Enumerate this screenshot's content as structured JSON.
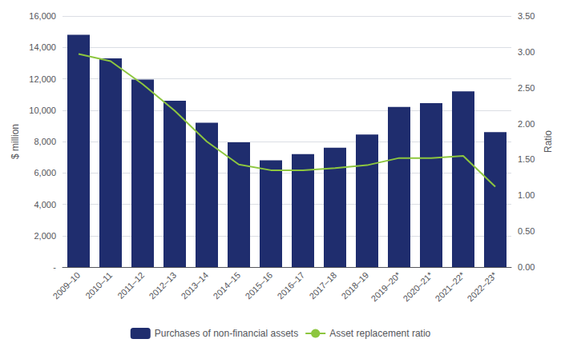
{
  "chart_data": {
    "type": "bar",
    "categories": [
      "2009–10",
      "2010–11",
      "2011–12",
      "2012–13",
      "2013–14",
      "2014–15",
      "2015–16",
      "2016–17",
      "2017–18",
      "2018–19",
      "2019–20*",
      "2020–21*",
      "2021–22*",
      "2022–23*"
    ],
    "series": [
      {
        "name": "Purchases of non-financial assets",
        "type": "bar",
        "color": "#1f2d6e",
        "values": [
          14800,
          13300,
          11950,
          10600,
          9200,
          7950,
          6800,
          7200,
          7600,
          8450,
          10200,
          10450,
          11200,
          8600
        ]
      },
      {
        "name": "Asset replacement ratio",
        "type": "line",
        "color": "#8dc63f",
        "axis": "y2",
        "marker": "none",
        "values": [
          2.97,
          2.87,
          2.55,
          2.18,
          1.75,
          1.43,
          1.35,
          1.35,
          1.38,
          1.42,
          1.52,
          1.52,
          1.55,
          1.12
        ]
      }
    ],
    "ylabel": "$ million",
    "y2label": "Ratio",
    "ylim": [
      0,
      16000
    ],
    "yticks": [
      {
        "value": 0,
        "label": "-"
      },
      {
        "value": 2000,
        "label": "2,000"
      },
      {
        "value": 4000,
        "label": "4,000"
      },
      {
        "value": 6000,
        "label": "6,000"
      },
      {
        "value": 8000,
        "label": "8,000"
      },
      {
        "value": 10000,
        "label": "10,000"
      },
      {
        "value": 12000,
        "label": "12,000"
      },
      {
        "value": 14000,
        "label": "14,000"
      },
      {
        "value": 16000,
        "label": "16,000"
      }
    ],
    "y2lim": [
      0,
      3.5
    ],
    "y2ticks": [
      {
        "value": 0,
        "label": "0.00"
      },
      {
        "value": 0.5,
        "label": "0.50"
      },
      {
        "value": 1,
        "label": "1.00"
      },
      {
        "value": 1.5,
        "label": "1.50"
      },
      {
        "value": 2,
        "label": "2.00"
      },
      {
        "value": 2.5,
        "label": "2.50"
      },
      {
        "value": 3,
        "label": "3.00"
      },
      {
        "value": 3.5,
        "label": "3.50"
      }
    ],
    "grid": true,
    "legend": "bottom"
  }
}
